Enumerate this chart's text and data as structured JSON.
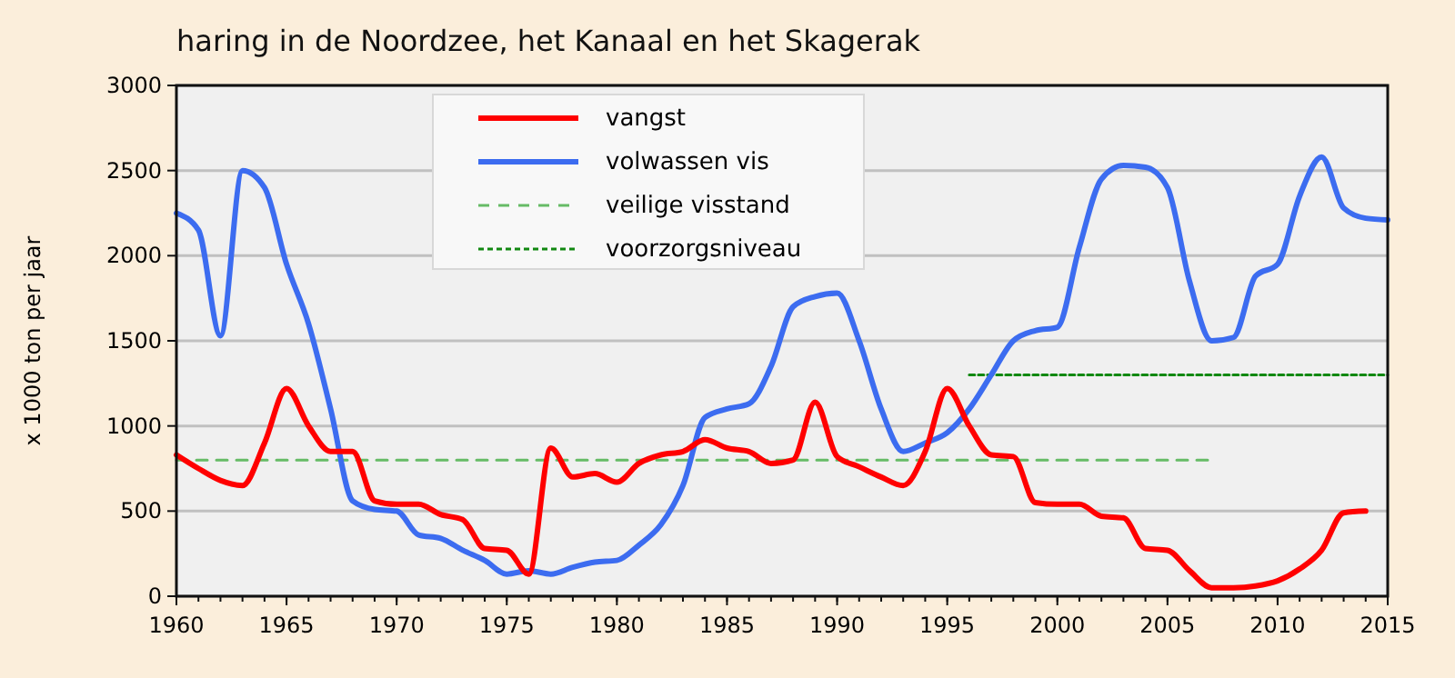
{
  "chart_data": {
    "type": "line",
    "title": "haring in de Noordzee, het Kanaal en het Skagerak",
    "ylabel": "x 1000 ton per jaar",
    "xlim": [
      1960,
      2015
    ],
    "xticks": [
      1960,
      1965,
      1970,
      1975,
      1980,
      1985,
      1990,
      1995,
      2000,
      2005,
      2010,
      2015
    ],
    "ylim": [
      0,
      3000
    ],
    "yticks": [
      0,
      500,
      1000,
      1500,
      2000,
      2500,
      3000
    ],
    "grid": "y",
    "legend": "top",
    "marker": "none",
    "line_style": "solid",
    "series": [
      {
        "name": "vangst",
        "color": "#ff0000",
        "x": [
          1960,
          1961,
          1962,
          1963,
          1964,
          1965,
          1966,
          1967,
          1968,
          1969,
          1970,
          1971,
          1972,
          1973,
          1974,
          1975,
          1976,
          1977,
          1978,
          1979,
          1980,
          1981,
          1982,
          1983,
          1984,
          1985,
          1986,
          1987,
          1988,
          1989,
          1990,
          1991,
          1992,
          1993,
          1994,
          1995,
          1996,
          1997,
          1998,
          1999,
          2000,
          2001,
          2002,
          2003,
          2004,
          2005,
          2006,
          2007,
          2008,
          2009,
          2010,
          2011,
          2012,
          2013,
          2014
        ],
        "values": [
          830,
          750,
          680,
          650,
          900,
          1220,
          1000,
          850,
          850,
          560,
          540,
          540,
          480,
          450,
          280,
          270,
          130,
          870,
          700,
          720,
          670,
          780,
          830,
          850,
          920,
          870,
          850,
          780,
          800,
          1140,
          820,
          760,
          700,
          650,
          850,
          1220,
          1000,
          830,
          820,
          550,
          540,
          540,
          470,
          460,
          280,
          270,
          150,
          50,
          50,
          60,
          90,
          160,
          270,
          490,
          500
        ]
      },
      {
        "name": "volwassen vis",
        "color": "#3c6cf0",
        "x": [
          1960,
          1961,
          1962,
          1963,
          1964,
          1965,
          1966,
          1967,
          1968,
          1969,
          1970,
          1971,
          1972,
          1973,
          1974,
          1975,
          1976,
          1977,
          1978,
          1979,
          1980,
          1981,
          1982,
          1983,
          1984,
          1985,
          1986,
          1987,
          1988,
          1989,
          1990,
          1991,
          1992,
          1993,
          1994,
          1995,
          1996,
          1997,
          1998,
          1999,
          2000,
          2001,
          2002,
          2003,
          2004,
          2005,
          2006,
          2007,
          2008,
          2009,
          2010,
          2011,
          2012,
          2013,
          2014,
          2015
        ],
        "values": [
          2250,
          2150,
          1530,
          2500,
          2400,
          1950,
          1600,
          1100,
          560,
          510,
          500,
          360,
          340,
          270,
          210,
          130,
          150,
          130,
          170,
          200,
          210,
          300,
          420,
          650,
          1050,
          1100,
          1130,
          1350,
          1700,
          1760,
          1780,
          1500,
          1100,
          850,
          900,
          960,
          1100,
          1300,
          1500,
          1560,
          1580,
          2050,
          2450,
          2530,
          2520,
          2400,
          1850,
          1500,
          1520,
          1880,
          1950,
          2350,
          2580,
          2280,
          2220,
          2210
        ]
      },
      {
        "name": "veilige visstand",
        "color": "#66bb66",
        "line_style": "dashed",
        "x": [
          1960,
          2007
        ],
        "values": [
          800,
          800
        ]
      },
      {
        "name": "voorzorgsniveau",
        "color": "#118811",
        "line_style": "dotted",
        "x": [
          1996,
          2015
        ],
        "values": [
          1300,
          1300
        ]
      }
    ]
  }
}
